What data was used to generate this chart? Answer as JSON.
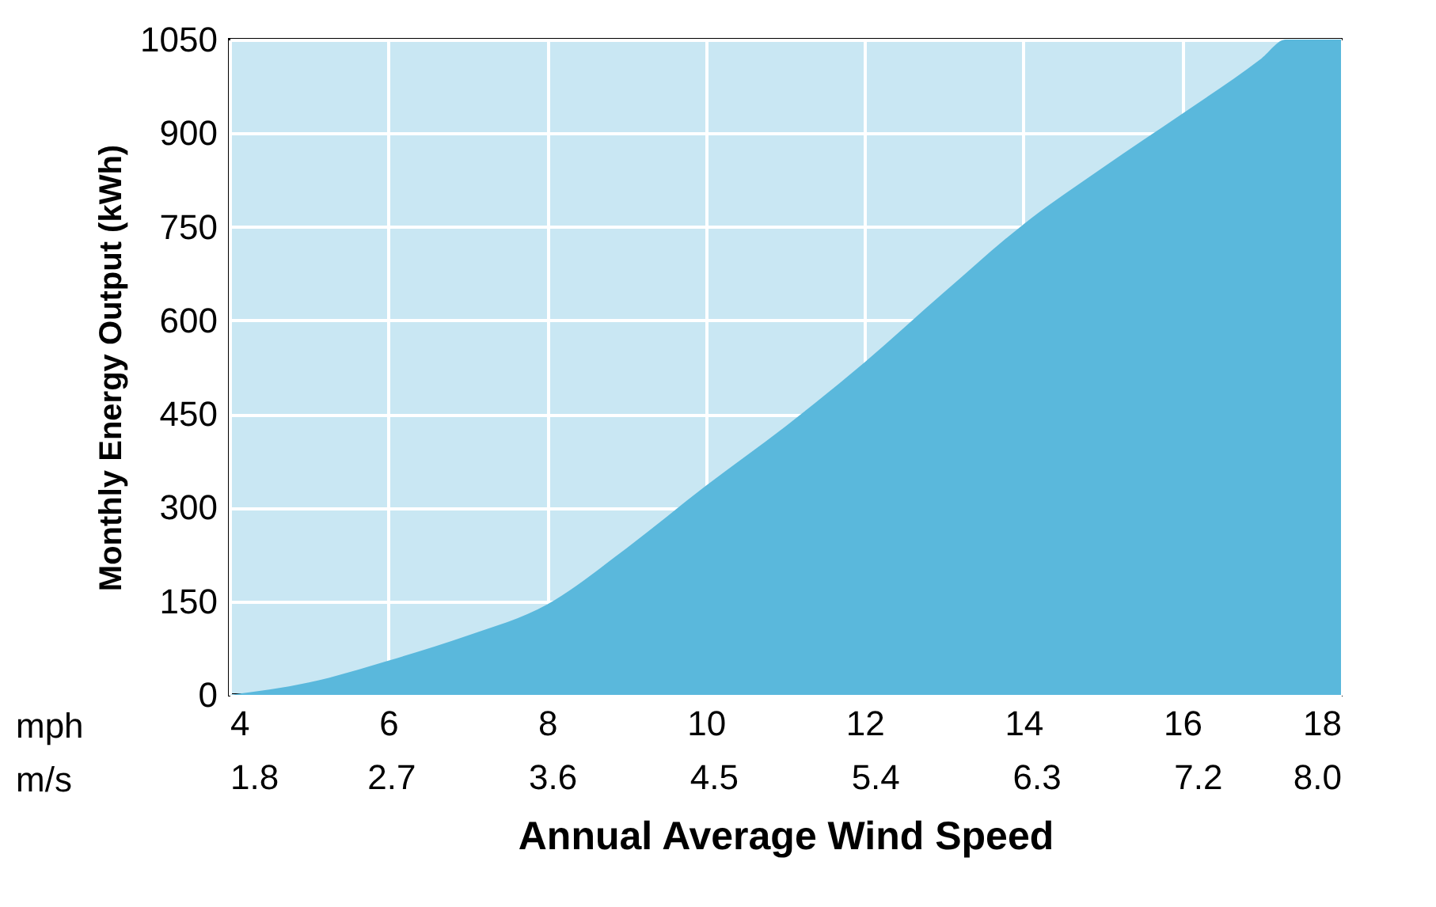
{
  "chart_data": {
    "type": "area",
    "xlabel": "Annual Average Wind Speed",
    "ylabel": "Monthly Energy Output (kWh)",
    "x": [
      4,
      5,
      6,
      7,
      8,
      9,
      10,
      11,
      12,
      13,
      14,
      15,
      16,
      17,
      17.3,
      18
    ],
    "series": [
      {
        "color": "#5ab8dc",
        "values": [
          0,
          20,
          55,
          95,
          145,
          235,
          335,
          430,
          533,
          645,
          754,
          845,
          931,
          1020,
          1050,
          1050
        ]
      }
    ],
    "xlim": [
      4,
      18
    ],
    "ylim": [
      0,
      1050
    ],
    "xticks": [
      4,
      6,
      8,
      10,
      12,
      14,
      16,
      18
    ],
    "x2lim": [
      1.8,
      8.0
    ],
    "x2ticks": [
      {
        "value": 1.8,
        "label": "1.8"
      },
      {
        "value": 2.7,
        "label": "2.7"
      },
      {
        "value": 3.6,
        "label": "3.6"
      },
      {
        "value": 4.5,
        "label": "4.5"
      },
      {
        "value": 5.4,
        "label": "5.4"
      },
      {
        "value": 6.3,
        "label": "6.3"
      },
      {
        "value": 7.2,
        "label": "7.2"
      },
      {
        "value": 8.0,
        "label": "8.0"
      }
    ],
    "yticks": [
      0,
      150,
      300,
      450,
      600,
      750,
      900,
      {
        "value": 1050,
        "label": "1050"
      }
    ],
    "annotations": [
      "mph",
      "m/s"
    ],
    "grid": true
  }
}
